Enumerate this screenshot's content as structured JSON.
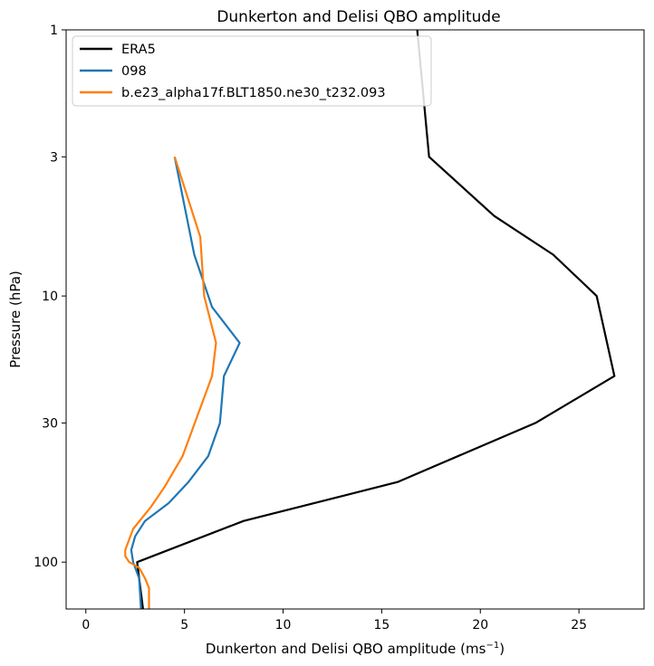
{
  "chart_data": {
    "type": "line",
    "title": "Dunkerton and Delisi QBO amplitude",
    "xlabel": "Dunkerton and Delisi QBO amplitude (ms",
    "xlabel_sup": "−1",
    "xlabel_end": ")",
    "ylabel": "Pressure (hPa)",
    "xlim": [
      -1,
      28.3
    ],
    "ylim": [
      150,
      1
    ],
    "yscale": "log",
    "xticks": [
      0,
      5,
      10,
      15,
      20,
      25
    ],
    "yticks": [
      1,
      3,
      10,
      30,
      100
    ],
    "grid": false,
    "legend_position": "top-left",
    "series": [
      {
        "name": "ERA5",
        "color": "#000000",
        "points": [
          [
            2.9,
            150
          ],
          [
            2.7,
            115
          ],
          [
            2.6,
            100
          ],
          [
            8,
            70
          ],
          [
            15.8,
            50
          ],
          [
            22.8,
            30
          ],
          [
            26.8,
            20
          ],
          [
            25.9,
            10
          ],
          [
            23.7,
            7
          ],
          [
            20.7,
            5
          ],
          [
            17.4,
            3
          ],
          [
            16.8,
            1
          ]
        ]
      },
      {
        "name": "098",
        "color": "#1f77b4",
        "points": [
          [
            2.8,
            150
          ],
          [
            2.7,
            115
          ],
          [
            2.4,
            100
          ],
          [
            2.3,
            90
          ],
          [
            2.5,
            80
          ],
          [
            3,
            70
          ],
          [
            4.2,
            60
          ],
          [
            5.2,
            50
          ],
          [
            6.2,
            40
          ],
          [
            6.8,
            30
          ],
          [
            7,
            20
          ],
          [
            7.8,
            15
          ],
          [
            6.4,
            11
          ],
          [
            5.5,
            7
          ],
          [
            4.5,
            3
          ]
        ]
      },
      {
        "name": "b.e23_alpha17f.BLT1850.ne30_t232.093",
        "color": "#ff7f0e",
        "points": [
          [
            3.2,
            150
          ],
          [
            3.2,
            125
          ],
          [
            3,
            115
          ],
          [
            2.7,
            105
          ],
          [
            2.2,
            100
          ],
          [
            2,
            95
          ],
          [
            2,
            90
          ],
          [
            2.4,
            75
          ],
          [
            3.3,
            62
          ],
          [
            4,
            52
          ],
          [
            4.9,
            40
          ],
          [
            6.4,
            20
          ],
          [
            6.6,
            15
          ],
          [
            6,
            10
          ],
          [
            5.8,
            6
          ],
          [
            4.5,
            3
          ]
        ]
      }
    ]
  }
}
